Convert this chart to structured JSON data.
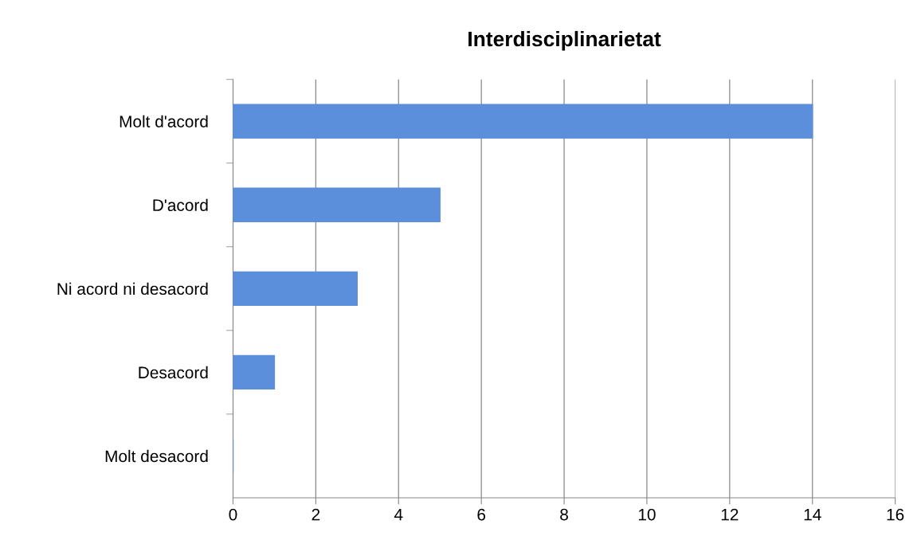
{
  "chart_data": {
    "type": "bar",
    "orientation": "horizontal",
    "title": "Interdisciplinarietat",
    "categories": [
      "Molt d'acord",
      "D'acord",
      "Ni acord ni desacord",
      "Desacord",
      "Molt desacord"
    ],
    "values": [
      14,
      5,
      3,
      1,
      0
    ],
    "color": "#5b8fdc",
    "xlim": [
      0,
      16
    ],
    "xticks": [
      0,
      2,
      4,
      6,
      8,
      10,
      12,
      14,
      16
    ],
    "grid": "x",
    "legend": false
  }
}
